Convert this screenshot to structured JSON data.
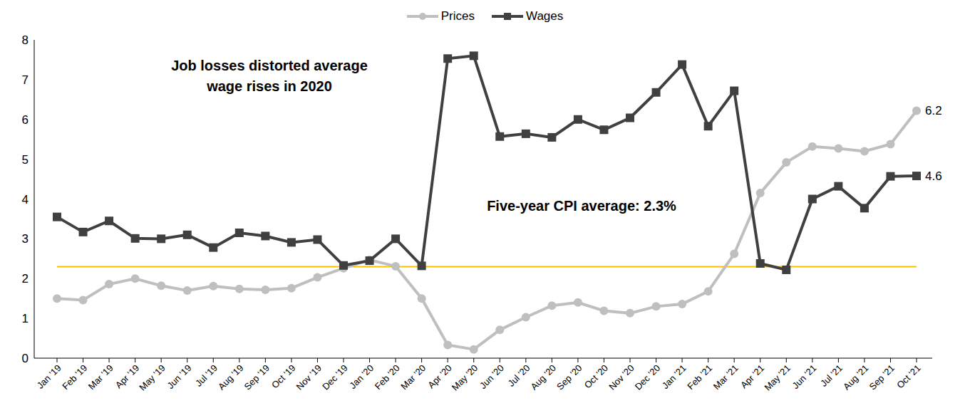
{
  "chart_data": {
    "type": "line",
    "categories": [
      "Jan '19",
      "Feb '19",
      "Mar '19",
      "Apr '19",
      "May '19",
      "Jun '19",
      "Jul '19",
      "Aug '19",
      "Sep '19",
      "Oct '19",
      "Nov '19",
      "Dec '19",
      "Jan '20",
      "Feb '20",
      "Mar '20",
      "Apr '20",
      "May '20",
      "Jun '20",
      "Jul '20",
      "Aug '20",
      "Sep '20",
      "Oct '20",
      "Nov '20",
      "Dec '20",
      "Jan '21",
      "Feb '21",
      "Mar '21",
      "Apr '21",
      "May '21",
      "Jun '21",
      "Jul '21",
      "Aug '21",
      "Sep '21",
      "Oct '21"
    ],
    "series": [
      {
        "name": "Prices",
        "color": "#bfbfbf",
        "marker": "circle",
        "values": [
          1.5,
          1.46,
          1.86,
          2.0,
          1.82,
          1.7,
          1.81,
          1.74,
          1.72,
          1.76,
          2.03,
          2.26,
          2.47,
          2.31,
          1.5,
          0.33,
          0.22,
          0.71,
          1.03,
          1.32,
          1.4,
          1.19,
          1.13,
          1.3,
          1.36,
          1.68,
          2.62,
          4.15,
          4.92,
          5.32,
          5.27,
          5.2,
          5.38,
          6.22
        ],
        "value_labels": [
          null,
          null,
          null,
          null,
          null,
          null,
          null,
          null,
          null,
          null,
          null,
          null,
          null,
          null,
          null,
          null,
          null,
          null,
          null,
          null,
          null,
          null,
          null,
          null,
          null,
          null,
          null,
          null,
          null,
          null,
          null,
          null,
          null,
          "6.2"
        ]
      },
      {
        "name": "Wages",
        "color": "#404040",
        "marker": "square",
        "values": [
          3.55,
          3.17,
          3.45,
          3.01,
          3.0,
          3.1,
          2.78,
          3.15,
          3.07,
          2.91,
          2.98,
          2.33,
          2.45,
          3.0,
          2.32,
          7.53,
          7.6,
          5.57,
          5.64,
          5.55,
          6.0,
          5.74,
          6.04,
          6.68,
          7.38,
          5.83,
          6.72,
          2.38,
          2.22,
          4.0,
          4.32,
          3.77,
          4.57,
          4.58
        ],
        "value_labels": [
          null,
          null,
          null,
          null,
          null,
          null,
          null,
          null,
          null,
          null,
          null,
          null,
          null,
          null,
          null,
          null,
          null,
          null,
          null,
          null,
          null,
          null,
          null,
          null,
          null,
          null,
          null,
          null,
          null,
          null,
          null,
          null,
          null,
          "4.6"
        ]
      }
    ],
    "ylim": [
      0,
      8
    ],
    "yticks": [
      0,
      1,
      2,
      3,
      4,
      5,
      6,
      7,
      8
    ],
    "grid": false,
    "legend": "top",
    "reference_line": {
      "value": 2.3,
      "label": "Five-year CPI average: 2.3%",
      "color": "#ffc000"
    },
    "annotation": [
      "Job losses distorted average",
      "wage rises in 2020"
    ]
  }
}
